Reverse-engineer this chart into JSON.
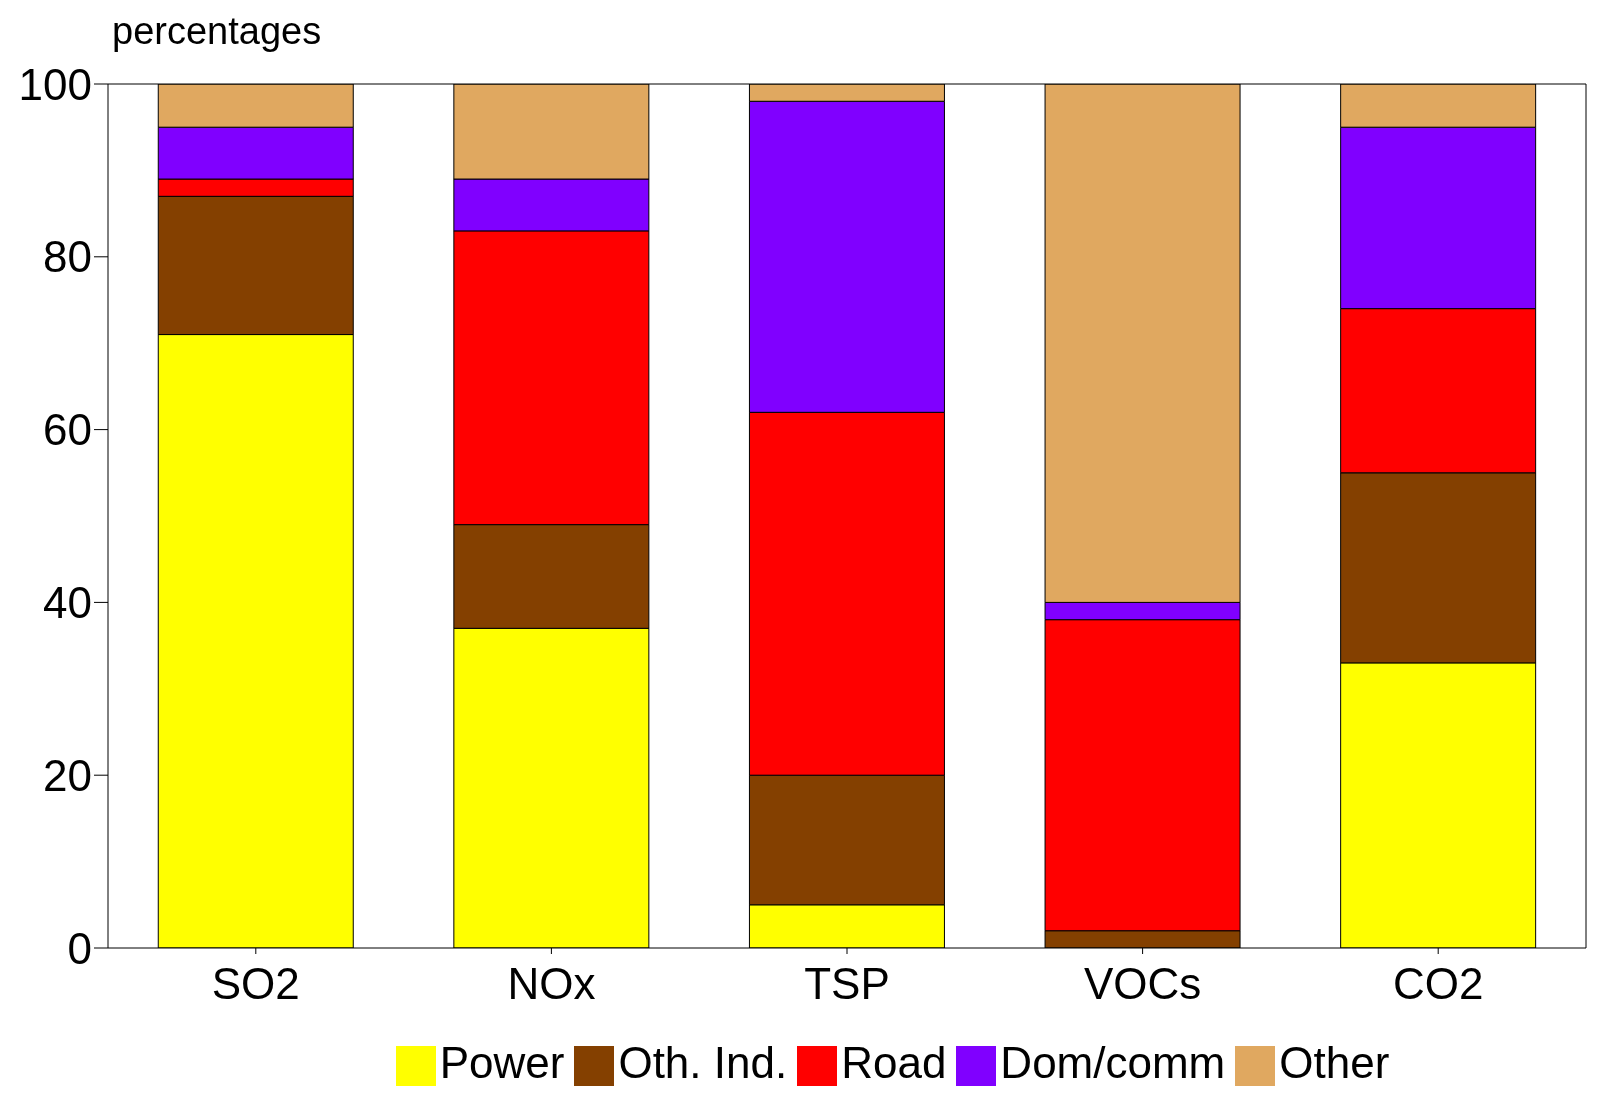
{
  "chart_data": {
    "type": "bar",
    "stacked": true,
    "ylabel": "percentages",
    "categories": [
      "SO2",
      "NOx",
      "TSP",
      "VOCs",
      "CO2"
    ],
    "series": [
      {
        "name": "Power",
        "color": "#ffff00",
        "values": [
          71,
          37,
          5,
          0,
          33
        ]
      },
      {
        "name": "Oth. Ind.",
        "color": "#844000",
        "values": [
          16,
          12,
          15,
          2,
          22
        ]
      },
      {
        "name": "Road",
        "color": "#ff0000",
        "values": [
          2,
          34,
          42,
          36,
          19
        ]
      },
      {
        "name": "Dom/comm",
        "color": "#8000ff",
        "values": [
          6,
          6,
          36,
          2,
          21
        ]
      },
      {
        "name": "Other",
        "color": "#e0a860",
        "values": [
          5,
          11,
          2,
          60,
          5
        ]
      }
    ],
    "ylim": [
      0,
      100
    ],
    "yticks": [
      0,
      20,
      40,
      60,
      80,
      100
    ],
    "grid": false,
    "legend": "bottom"
  }
}
